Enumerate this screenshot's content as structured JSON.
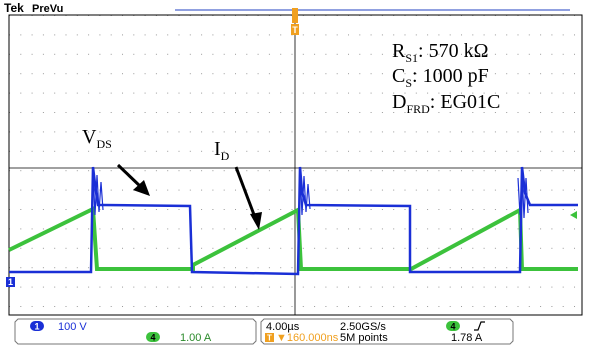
{
  "header": {
    "brand": "Tek",
    "mode": "PreVu",
    "trigger_marker": "T"
  },
  "annotations": {
    "params": {
      "rs1": {
        "name": "R",
        "sub": "S1",
        "value": ": 570 kΩ"
      },
      "cs": {
        "name": "C",
        "sub": "S",
        "value": ": 1000 pF"
      },
      "dfrd": {
        "name": "D",
        "sub": "FRD",
        "value": ": EG01C"
      }
    },
    "vds_label": {
      "name": "V",
      "sub": "DS"
    },
    "id_label": {
      "name": "I",
      "sub": "D"
    }
  },
  "channels": [
    {
      "number": "1",
      "scale": "100 V",
      "color": "#1a2fd6",
      "ground_marker": "1"
    },
    {
      "number": "4",
      "scale": "1.00 A",
      "color": "#3cc23c"
    }
  ],
  "timebase": {
    "time_per_div": "4.00µs",
    "sample_rate": "2.50GS/s",
    "position": "▼160.000ns",
    "record_length": "5M points"
  },
  "trigger": {
    "source": "4",
    "slope_icon": "rising-edge-icon",
    "level": "1.78 A"
  },
  "colors": {
    "vds_trace": "#1a2fd6",
    "id_trace": "#3cc23c",
    "trigger_orange": "#f0a020",
    "graticule": "#000000"
  }
}
